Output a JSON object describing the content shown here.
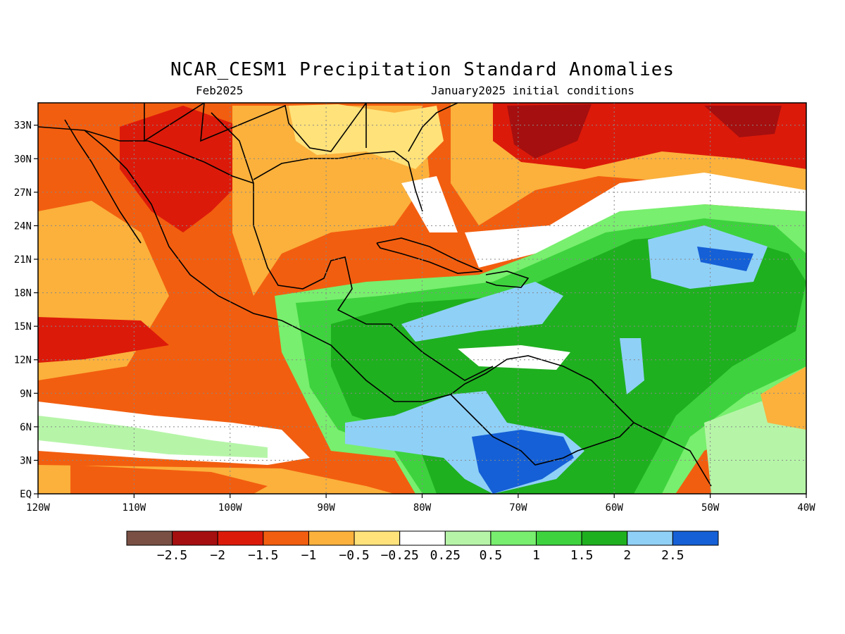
{
  "figure": {
    "title": "NCAR_CESM1 Precipitation Standard Anomalies",
    "subtitle_left": "Feb2025",
    "subtitle_right": "January2025 initial conditions"
  },
  "axes": {
    "lon_ticks": [
      "120W",
      "110W",
      "100W",
      "90W",
      "80W",
      "70W",
      "60W",
      "50W",
      "40W"
    ],
    "lat_ticks": [
      "EQ",
      "3N",
      "6N",
      "9N",
      "12N",
      "15N",
      "18N",
      "21N",
      "24N",
      "27N",
      "30N",
      "33N"
    ],
    "lon_range": [
      -120,
      -40
    ],
    "lat_range": [
      0,
      35
    ]
  },
  "colorbar": {
    "colors": [
      "#7a5044",
      "#a50f0f",
      "#dc1a0a",
      "#f25e0f",
      "#fbb13c",
      "#ffe27a",
      "#ffffff",
      "#b6f5a8",
      "#78ef6e",
      "#3ed33e",
      "#1fb01f",
      "#8fd0f7",
      "#1560d6"
    ],
    "labels": [
      "−2.5",
      "−2",
      "−1.5",
      "−1",
      "−0.5",
      "−0.25",
      "0.25",
      "0.5",
      "1",
      "1.5",
      "2",
      "2.5"
    ]
  },
  "map_regions": [
    {
      "name": "east-pacific-dry",
      "color": "#f25e0f"
    },
    {
      "name": "mexico-dry-core",
      "color": "#dc1a0a"
    },
    {
      "name": "gulf-of-mexico-dry",
      "color": "#fbb13c"
    },
    {
      "name": "north-atlantic-dry",
      "color": "#dc1a0a"
    },
    {
      "name": "caribbean-wet",
      "color": "#3ed33e"
    },
    {
      "name": "south-america-very-wet",
      "color": "#8fd0f7"
    },
    {
      "name": "central-atlantic-wet",
      "color": "#1fb01f"
    }
  ]
}
